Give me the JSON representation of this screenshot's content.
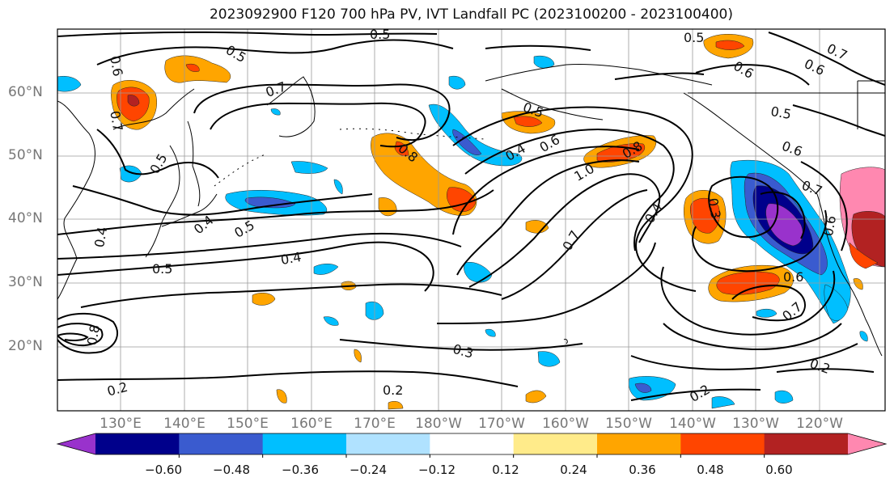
{
  "title": "2023092900 F120 700 hPa PV, IVT Landfall PC (2023100200 - 2023100400)",
  "map": {
    "lat_labels": [
      "60°N",
      "50°N",
      "40°N",
      "30°N",
      "20°N"
    ],
    "lon_labels": [
      "130°E",
      "140°E",
      "150°E",
      "160°E",
      "170°E",
      "180°W",
      "170°W",
      "160°W",
      "150°W",
      "140°W",
      "130°W",
      "120°W"
    ],
    "contour_labels": [
      "0.5",
      "0.6",
      "0.5",
      "0.7",
      "0.7",
      "0.5",
      "0.5",
      "0.4",
      "0.8",
      "0.6",
      "0.8",
      "1.0",
      "0.4",
      "0.6",
      "0.3",
      "0.7",
      "0.5",
      "0.6",
      "0.7",
      "0.4",
      "0.6",
      "0.7",
      "0.4",
      "0.5",
      "0.5",
      "0.4",
      "0.3",
      "0.2",
      "0.2",
      "0.2",
      "0.2",
      "0.6",
      "0.7",
      "0.6",
      "0.5",
      "0.8"
    ]
  },
  "colorbar": {
    "tick_labels": [
      "−0.60",
      "−0.48",
      "−0.36",
      "−0.24",
      "−0.12",
      "0.12",
      "0.24",
      "0.36",
      "0.48",
      "0.60"
    ],
    "colors": [
      "#9932cc",
      "#00008b",
      "#3a5bcf",
      "#00bfff",
      "#b0e2ff",
      "#ffffff",
      "#ffeb8a",
      "#ffa500",
      "#ff4500",
      "#b22222",
      "#ff88b0"
    ]
  }
}
